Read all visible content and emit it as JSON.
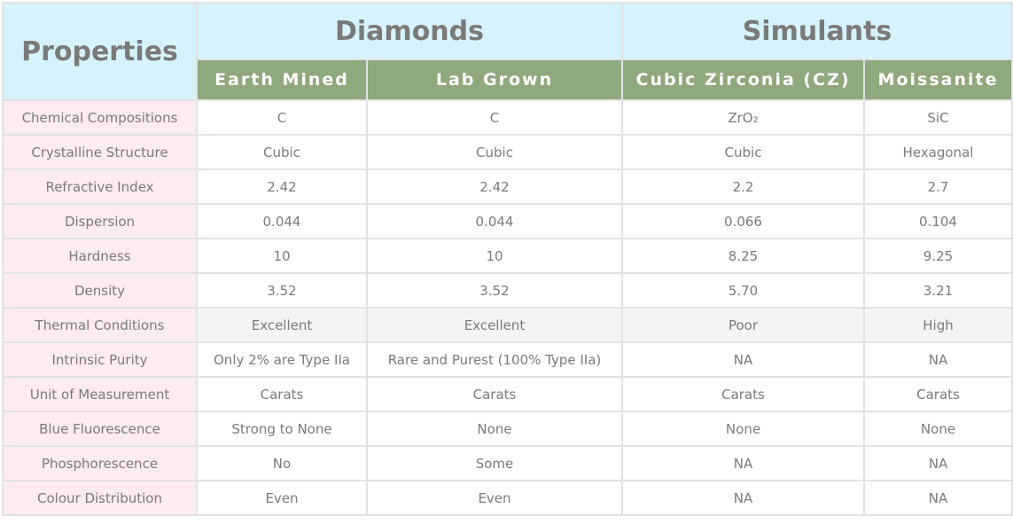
{
  "header": {
    "properties": "Properties",
    "groups": [
      "Diamonds",
      "Simulants"
    ],
    "columns": [
      "Earth Mined",
      "Lab Grown",
      "Cubic Zirconia (CZ)",
      "Moissanite"
    ]
  },
  "colors": {
    "group_header_bg": "#d6f3fd",
    "column_header_bg": "#8fa87e",
    "property_cell_bg": "#fcebf0",
    "highlight_row_bg": "#f4f4f4"
  },
  "rows": [
    {
      "property": "Chemical Compositions",
      "values": [
        "C",
        "C",
        "ZrO₂",
        "SiC"
      ]
    },
    {
      "property": "Crystalline Structure",
      "values": [
        "Cubic",
        "Cubic",
        "Cubic",
        "Hexagonal"
      ]
    },
    {
      "property": "Refractive Index",
      "values": [
        "2.42",
        "2.42",
        "2.2",
        "2.7"
      ]
    },
    {
      "property": "Dispersion",
      "values": [
        "0.044",
        "0.044",
        "0.066",
        "0.104"
      ]
    },
    {
      "property": "Hardness",
      "values": [
        "10",
        "10",
        "8.25",
        "9.25"
      ]
    },
    {
      "property": "Density",
      "values": [
        "3.52",
        "3.52",
        "5.70",
        "3.21"
      ]
    },
    {
      "property": "Thermal Conditions",
      "values": [
        "Excellent",
        "Excellent",
        "Poor",
        "High"
      ]
    },
    {
      "property": "Intrinsic Purity",
      "values": [
        "Only 2% are Type IIa",
        "Rare and Purest (100% Type IIa)",
        "NA",
        "NA"
      ]
    },
    {
      "property": "Unit of Measurement",
      "values": [
        "Carats",
        "Carats",
        "Carats",
        "Carats"
      ]
    },
    {
      "property": "Blue Fluorescence",
      "values": [
        "Strong to None",
        "None",
        "None",
        "None"
      ]
    },
    {
      "property": "Phosphorescence",
      "values": [
        "No",
        "Some",
        "NA",
        "NA"
      ]
    },
    {
      "property": "Colour Distribution",
      "values": [
        "Even",
        "Even",
        "NA",
        "NA"
      ]
    }
  ]
}
